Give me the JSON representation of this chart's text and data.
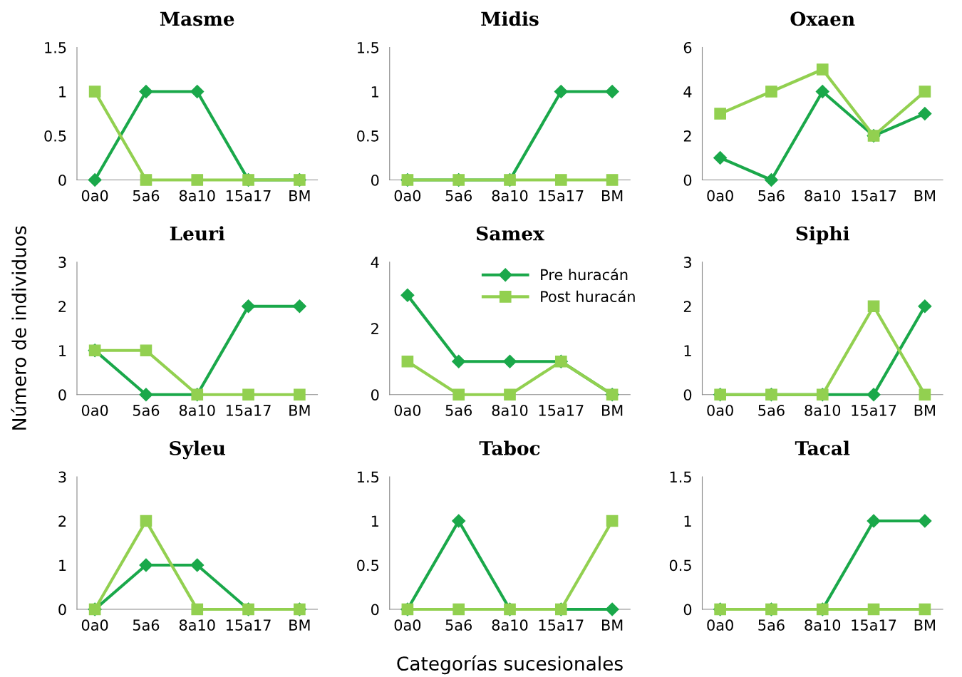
{
  "chart_data": [
    {
      "type": "line",
      "title": "Masme",
      "categories": [
        "0a0",
        "5a6",
        "8a10",
        "15a17",
        "BM"
      ],
      "ylim": [
        0,
        1.5
      ],
      "yticks": [
        0,
        0.5,
        1,
        1.5
      ],
      "grid": false,
      "series": [
        {
          "color": "#1aa84a",
          "marker": "diamond",
          "values": [
            0,
            1,
            1,
            0,
            0
          ]
        },
        {
          "color": "#92d050",
          "marker": "square",
          "values": [
            1,
            0,
            0,
            0,
            0
          ]
        }
      ]
    },
    {
      "type": "line",
      "title": "Midis",
      "categories": [
        "0a0",
        "5a6",
        "8a10",
        "15a17",
        "BM"
      ],
      "ylim": [
        0,
        1.5
      ],
      "yticks": [
        0,
        0.5,
        1,
        1.5
      ],
      "grid": false,
      "series": [
        {
          "color": "#1aa84a",
          "marker": "diamond",
          "values": [
            0,
            0,
            0,
            1,
            1
          ]
        },
        {
          "color": "#92d050",
          "marker": "square",
          "values": [
            0,
            0,
            0,
            0,
            0
          ]
        }
      ]
    },
    {
      "type": "line",
      "title": "Oxaen",
      "categories": [
        "0a0",
        "5a6",
        "8a10",
        "15a17",
        "BM"
      ],
      "ylim": [
        0,
        6
      ],
      "yticks": [
        0,
        2,
        4,
        6
      ],
      "grid": false,
      "series": [
        {
          "color": "#1aa84a",
          "marker": "diamond",
          "values": [
            1,
            0,
            4,
            2,
            3
          ]
        },
        {
          "color": "#92d050",
          "marker": "square",
          "values": [
            3,
            4,
            5,
            2,
            4
          ]
        }
      ]
    },
    {
      "type": "line",
      "title": "Leuri",
      "ylabel": "Número de individuos",
      "categories": [
        "0a0",
        "5a6",
        "8a10",
        "15a17",
        "BM"
      ],
      "ylim": [
        0,
        3
      ],
      "yticks": [
        0,
        1,
        2,
        3
      ],
      "grid": false,
      "series": [
        {
          "color": "#1aa84a",
          "marker": "diamond",
          "values": [
            1,
            0,
            0,
            2,
            2
          ]
        },
        {
          "color": "#92d050",
          "marker": "square",
          "values": [
            1,
            1,
            0,
            0,
            0
          ]
        }
      ]
    },
    {
      "type": "line",
      "title": "Samex",
      "categories": [
        "0a0",
        "5a6",
        "8a10",
        "15a17",
        "BM"
      ],
      "ylim": [
        0,
        4
      ],
      "yticks": [
        0,
        2,
        4
      ],
      "grid": false,
      "legend": "top right",
      "series": [
        {
          "name": "Pre huracán",
          "color": "#1aa84a",
          "marker": "diamond",
          "values": [
            3,
            1,
            1,
            1,
            0
          ]
        },
        {
          "name": "Post huracán",
          "color": "#92d050",
          "marker": "square",
          "values": [
            1,
            0,
            0,
            1,
            0
          ]
        }
      ]
    },
    {
      "type": "line",
      "title": "Siphi",
      "categories": [
        "0a0",
        "5a6",
        "8a10",
        "15a17",
        "BM"
      ],
      "ylim": [
        0,
        3
      ],
      "yticks": [
        0,
        1,
        2,
        3
      ],
      "grid": false,
      "series": [
        {
          "color": "#1aa84a",
          "marker": "diamond",
          "values": [
            0,
            0,
            0,
            0,
            2
          ]
        },
        {
          "color": "#92d050",
          "marker": "square",
          "values": [
            0,
            0,
            0,
            2,
            0
          ]
        }
      ]
    },
    {
      "type": "line",
      "title": "Syleu",
      "categories": [
        "0a0",
        "5a6",
        "8a10",
        "15a17",
        "BM"
      ],
      "ylim": [
        0,
        3
      ],
      "yticks": [
        0,
        1,
        2,
        3
      ],
      "grid": false,
      "series": [
        {
          "color": "#1aa84a",
          "marker": "diamond",
          "values": [
            0,
            1,
            1,
            0,
            0
          ]
        },
        {
          "color": "#92d050",
          "marker": "square",
          "values": [
            0,
            2,
            0,
            0,
            0
          ]
        }
      ]
    },
    {
      "type": "line",
      "title": "Taboc",
      "xlabel": "Categorías sucesionales",
      "categories": [
        "0a0",
        "5a6",
        "8a10",
        "15a17",
        "BM"
      ],
      "ylim": [
        0,
        1.5
      ],
      "yticks": [
        0,
        0.5,
        1,
        1.5
      ],
      "grid": false,
      "series": [
        {
          "color": "#1aa84a",
          "marker": "diamond",
          "values": [
            0,
            1,
            0,
            0,
            0
          ]
        },
        {
          "color": "#92d050",
          "marker": "square",
          "values": [
            0,
            0,
            0,
            0,
            1
          ]
        }
      ]
    },
    {
      "type": "line",
      "title": "Tacal",
      "categories": [
        "0a0",
        "5a6",
        "8a10",
        "15a17",
        "BM"
      ],
      "ylim": [
        0,
        1.5
      ],
      "yticks": [
        0,
        0.5,
        1,
        1.5
      ],
      "grid": false,
      "series": [
        {
          "color": "#1aa84a",
          "marker": "diamond",
          "values": [
            0,
            0,
            0,
            1,
            1
          ]
        },
        {
          "color": "#92d050",
          "marker": "square",
          "values": [
            0,
            0,
            0,
            0,
            0
          ]
        }
      ]
    }
  ]
}
